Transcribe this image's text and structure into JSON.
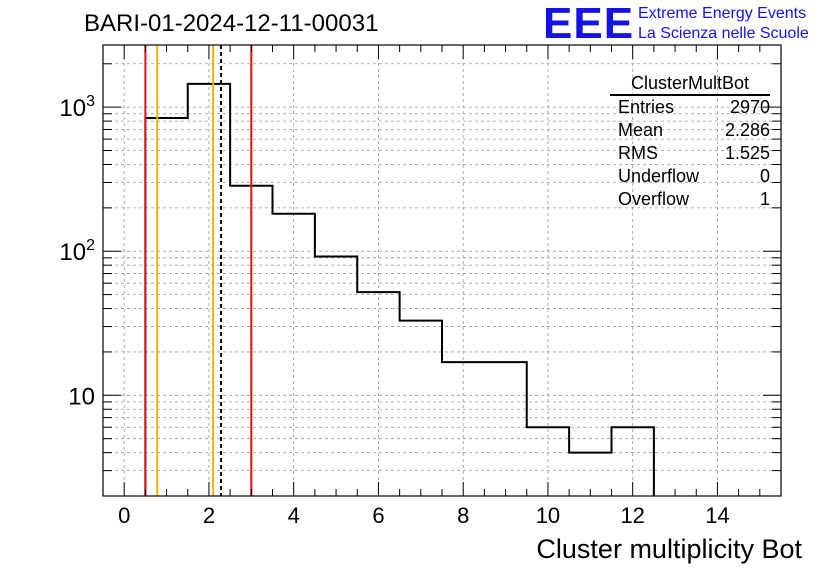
{
  "header": {
    "run_title": "BARI-01-2024-12-11-00031"
  },
  "logo": {
    "mark": "EEE",
    "line1": "Extreme Energy Events",
    "line2": "La Scienza nelle Scuole"
  },
  "stats_box": {
    "title": "ClusterMultBot",
    "rows": [
      {
        "label": "Entries",
        "value": "2970"
      },
      {
        "label": "Mean",
        "value": "2.286"
      },
      {
        "label": "RMS",
        "value": "1.525"
      },
      {
        "label": "Underflow",
        "value": "0"
      },
      {
        "label": "Overflow",
        "value": "1"
      }
    ]
  },
  "colors": {
    "histogram": "#000000",
    "red_line": "#e01010",
    "orange_line": "#f0b400",
    "grid": "#999999"
  },
  "chart_data": {
    "type": "bar",
    "title": "BARI-01-2024-12-11-00031",
    "xlabel": "Cluster multiplicity Bot",
    "ylabel": "",
    "yscale": "log",
    "xlim": [
      -0.5,
      15.5
    ],
    "ylim": [
      2,
      2700
    ],
    "grid": true,
    "bins": [
      {
        "low": 0.5,
        "high": 1.5,
        "value": 840
      },
      {
        "low": 1.5,
        "high": 2.5,
        "value": 1450
      },
      {
        "low": 2.5,
        "high": 3.5,
        "value": 285
      },
      {
        "low": 3.5,
        "high": 4.5,
        "value": 182
      },
      {
        "low": 4.5,
        "high": 5.5,
        "value": 92
      },
      {
        "low": 5.5,
        "high": 6.5,
        "value": 52
      },
      {
        "low": 6.5,
        "high": 7.5,
        "value": 33
      },
      {
        "low": 7.5,
        "high": 9.5,
        "value": 17
      },
      {
        "low": 9.5,
        "high": 10.5,
        "value": 6
      },
      {
        "low": 10.5,
        "high": 11.5,
        "value": 4
      },
      {
        "low": 11.5,
        "high": 12.5,
        "value": 6
      }
    ],
    "x_ticks": [
      0,
      2,
      4,
      6,
      8,
      10,
      12,
      14
    ],
    "x_tick_labels": [
      "0",
      "2",
      "4",
      "6",
      "8",
      "10",
      "12",
      "14"
    ],
    "y_ticks": [
      {
        "value": 10,
        "base": "10",
        "exp": ""
      },
      {
        "value": 100,
        "base": "10",
        "exp": "2"
      },
      {
        "value": 1000,
        "base": "10",
        "exp": "3"
      }
    ],
    "vertical_lines": [
      {
        "name": "red-line-left",
        "x": 0.5,
        "color": "red",
        "style": "solid"
      },
      {
        "name": "orange-line-left",
        "x": 0.78,
        "color": "orange",
        "style": "solid"
      },
      {
        "name": "orange-line-right",
        "x": 2.1,
        "color": "orange",
        "style": "solid"
      },
      {
        "name": "mean-line",
        "x": 2.286,
        "color": "black",
        "style": "dashed"
      },
      {
        "name": "red-line-right",
        "x": 3.0,
        "color": "red",
        "style": "solid"
      }
    ]
  }
}
